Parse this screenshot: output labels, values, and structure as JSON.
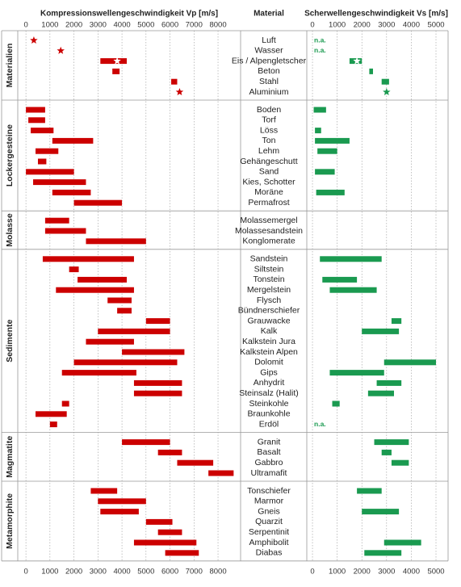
{
  "chart_data": {
    "type": "range",
    "vp_axis": {
      "title": "Kompressionswellengeschwindigkeit Vp [m/s]",
      "xlim": [
        -340,
        8940
      ],
      "xticks": [
        0,
        1000,
        2000,
        3000,
        4000,
        5000,
        6000,
        7000,
        8000
      ],
      "color": "#cc0000"
    },
    "vs_axis": {
      "title": "Scherwellengeschwindigkeit Vs [m/s]",
      "xlim": [
        -230,
        5490
      ],
      "xticks": [
        0,
        1000,
        2000,
        3000,
        4000,
        5000
      ],
      "color": "#1a9a50"
    },
    "material_title": "Material",
    "groups": [
      {
        "name": "Materialien",
        "materials": [
          {
            "name": "Luft",
            "vp_marker": 330,
            "vs_label": "n.a."
          },
          {
            "name": "Wasser",
            "vp_marker": 1450,
            "vs_label": "n.a."
          },
          {
            "name": "Eis / Alpengletscher",
            "vp": [
              3100,
              4200
            ],
            "vp_marker": 3800,
            "vs": [
              1500,
              2000
            ],
            "vs_marker": 1800
          },
          {
            "name": "Beton",
            "vp": [
              3600,
              3900
            ],
            "vs": [
              2300,
              2450
            ]
          },
          {
            "name": "Stahl",
            "vp": [
              6050,
              6300
            ],
            "vs": [
              2800,
              3100
            ]
          },
          {
            "name": "Aluminium",
            "vp_marker": 6400,
            "vs_marker": 3000
          }
        ]
      },
      {
        "name": "Lockergesteine",
        "materials": [
          {
            "name": "Boden",
            "vp": [
              0,
              800
            ],
            "vs": [
              50,
              550
            ]
          },
          {
            "name": "Torf",
            "vp": [
              100,
              800
            ]
          },
          {
            "name": "Löss",
            "vp": [
              200,
              1150
            ],
            "vs": [
              100,
              350
            ]
          },
          {
            "name": "Ton",
            "vp": [
              1100,
              2800
            ],
            "vs": [
              100,
              1500
            ]
          },
          {
            "name": "Lehm",
            "vp": [
              400,
              1350
            ],
            "vs": [
              200,
              1000
            ]
          },
          {
            "name": "Gehängeschutt",
            "vp": [
              500,
              850
            ]
          },
          {
            "name": "Sand",
            "vp": [
              0,
              2000
            ],
            "vs": [
              100,
              900
            ]
          },
          {
            "name": "Kies, Schotter",
            "vp": [
              300,
              2500
            ]
          },
          {
            "name": "Moräne",
            "vp": [
              1100,
              2700
            ],
            "vs": [
              150,
              1300
            ]
          },
          {
            "name": "Permafrost",
            "vp": [
              2000,
              4000
            ]
          }
        ]
      },
      {
        "name": "Molasse",
        "materials": [
          {
            "name": "Molassemergel",
            "vp": [
              800,
              1800
            ]
          },
          {
            "name": "Molassesandstein",
            "vp": [
              800,
              2500
            ]
          },
          {
            "name": "Konglomerate",
            "vp": [
              2500,
              5000
            ]
          }
        ]
      },
      {
        "name": "Sedimente",
        "materials": [
          {
            "name": "Sandstein",
            "vp": [
              700,
              4500
            ],
            "vs": [
              300,
              2800
            ]
          },
          {
            "name": "Siltstein",
            "vp": [
              1800,
              2200
            ]
          },
          {
            "name": "Tonstein",
            "vp": [
              2150,
              4200
            ],
            "vs": [
              400,
              1800
            ]
          },
          {
            "name": "Mergelstein",
            "vp": [
              1250,
              4500
            ],
            "vs": [
              700,
              2600
            ]
          },
          {
            "name": "Flysch",
            "vp": [
              3400,
              4400
            ]
          },
          {
            "name": "Bündnerschiefer",
            "vp": [
              3800,
              4400
            ]
          },
          {
            "name": "Grauwacke",
            "vp": [
              5000,
              6000
            ],
            "vs": [
              3200,
              3600
            ]
          },
          {
            "name": "Kalk",
            "vp": [
              3000,
              6000
            ],
            "vs": [
              2000,
              3500
            ]
          },
          {
            "name": "Kalkstein Jura",
            "vp": [
              2500,
              4500
            ]
          },
          {
            "name": "Kalkstein Alpen",
            "vp": [
              4000,
              6600
            ]
          },
          {
            "name": "Dolomit",
            "vp": [
              2000,
              6300
            ],
            "vs": [
              2900,
              5000
            ]
          },
          {
            "name": "Gips",
            "vp": [
              1500,
              4600
            ],
            "vs": [
              700,
              2900
            ]
          },
          {
            "name": "Anhydrit",
            "vp": [
              4500,
              6500
            ],
            "vs": [
              2600,
              3600
            ]
          },
          {
            "name": "Steinsalz (Halit)",
            "vp": [
              4500,
              6500
            ],
            "vs": [
              2250,
              3300
            ]
          },
          {
            "name": "Steinkohle",
            "vp": [
              1500,
              1800
            ],
            "vs": [
              800,
              1100
            ]
          },
          {
            "name": "Braunkohle",
            "vp": [
              400,
              1700
            ]
          },
          {
            "name": "Erdöl",
            "vp": [
              1000,
              1300
            ],
            "vs_label": "n.a."
          }
        ]
      },
      {
        "name": "Magmatite",
        "materials": [
          {
            "name": "Granit",
            "vp": [
              4000,
              6000
            ],
            "vs": [
              2500,
              3900
            ]
          },
          {
            "name": "Basalt",
            "vp": [
              5500,
              6500
            ],
            "vs": [
              2800,
              3200
            ]
          },
          {
            "name": "Gabbro",
            "vp": [
              6300,
              7800
            ],
            "vs": [
              3200,
              3900
            ]
          },
          {
            "name": "Ultramafit",
            "vp": [
              7600,
              8650
            ]
          }
        ]
      },
      {
        "name": "Metamorphite",
        "materials": [
          {
            "name": "Tonschiefer",
            "vp": [
              2700,
              3800
            ],
            "vs": [
              1800,
              2800
            ]
          },
          {
            "name": "Marmor",
            "vp": [
              3000,
              5000
            ]
          },
          {
            "name": "Gneis",
            "vp": [
              3100,
              4700
            ],
            "vs": [
              2000,
              3500
            ]
          },
          {
            "name": "Quarzit",
            "vp": [
              5000,
              6100
            ]
          },
          {
            "name": "Serpentinit",
            "vp": [
              5500,
              6500
            ]
          },
          {
            "name": "Amphibolit",
            "vp": [
              4500,
              7100
            ],
            "vs": [
              2900,
              4400
            ]
          },
          {
            "name": "Diabas",
            "vp": [
              5800,
              7200
            ],
            "vs": [
              2100,
              3600
            ]
          }
        ]
      }
    ]
  }
}
